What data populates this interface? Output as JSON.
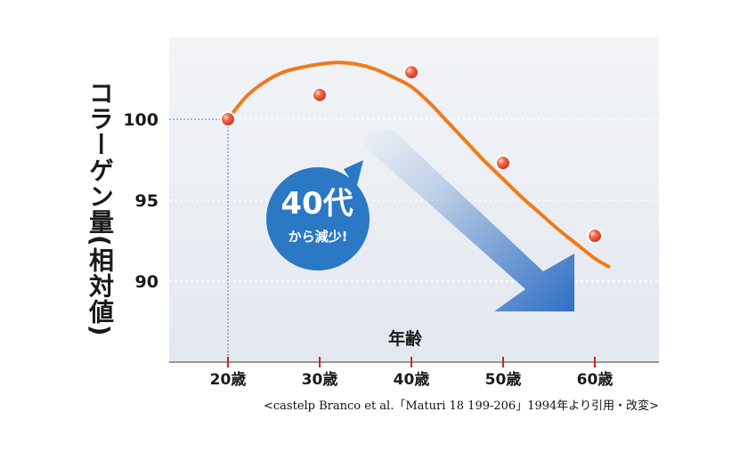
{
  "chart_data": {
    "type": "line",
    "ylabel": "コラーゲン量(相対値)",
    "xlabel": "年齢",
    "categories": [
      "20歳",
      "30歳",
      "40歳",
      "50歳",
      "60歳"
    ],
    "x": [
      20,
      30,
      40,
      50,
      60
    ],
    "ylim": [
      85,
      105
    ],
    "yticks": [
      90,
      95,
      100
    ],
    "grid": true,
    "series": [
      {
        "name": "data-points",
        "values": [
          100,
          101.5,
          102.9,
          97.3,
          92.8
        ],
        "marker": "sphere",
        "color": "#e0352b"
      },
      {
        "name": "trend-curve",
        "x": [
          20,
          22,
          24,
          26,
          28,
          30,
          32,
          34,
          36,
          38,
          40,
          42,
          44,
          46,
          48,
          50,
          52,
          54,
          56,
          58,
          60,
          61.5
        ],
        "values": [
          100,
          101.4,
          102.3,
          102.9,
          103.2,
          103.4,
          103.5,
          103.4,
          103.1,
          102.6,
          102.0,
          101.0,
          99.8,
          98.6,
          97.4,
          96.3,
          95.2,
          94.2,
          93.2,
          92.3,
          91.4,
          90.9
        ],
        "color": "#f07a1a"
      }
    ],
    "reference": {
      "x": 20,
      "y": 100
    },
    "annotation": {
      "main": "40代",
      "sub": "から減少!",
      "color": "#2b78c4"
    },
    "caption": "<castelp Branco et al.「Maturi 18 199-206」1994年より引用・改変>"
  },
  "colors": {
    "plot_bg": "#ebeef3",
    "axis": "#777777",
    "tick": "#d62020",
    "grid": "#ffffff",
    "guide": "#3c7fcc",
    "arrow": "#3573c5"
  }
}
